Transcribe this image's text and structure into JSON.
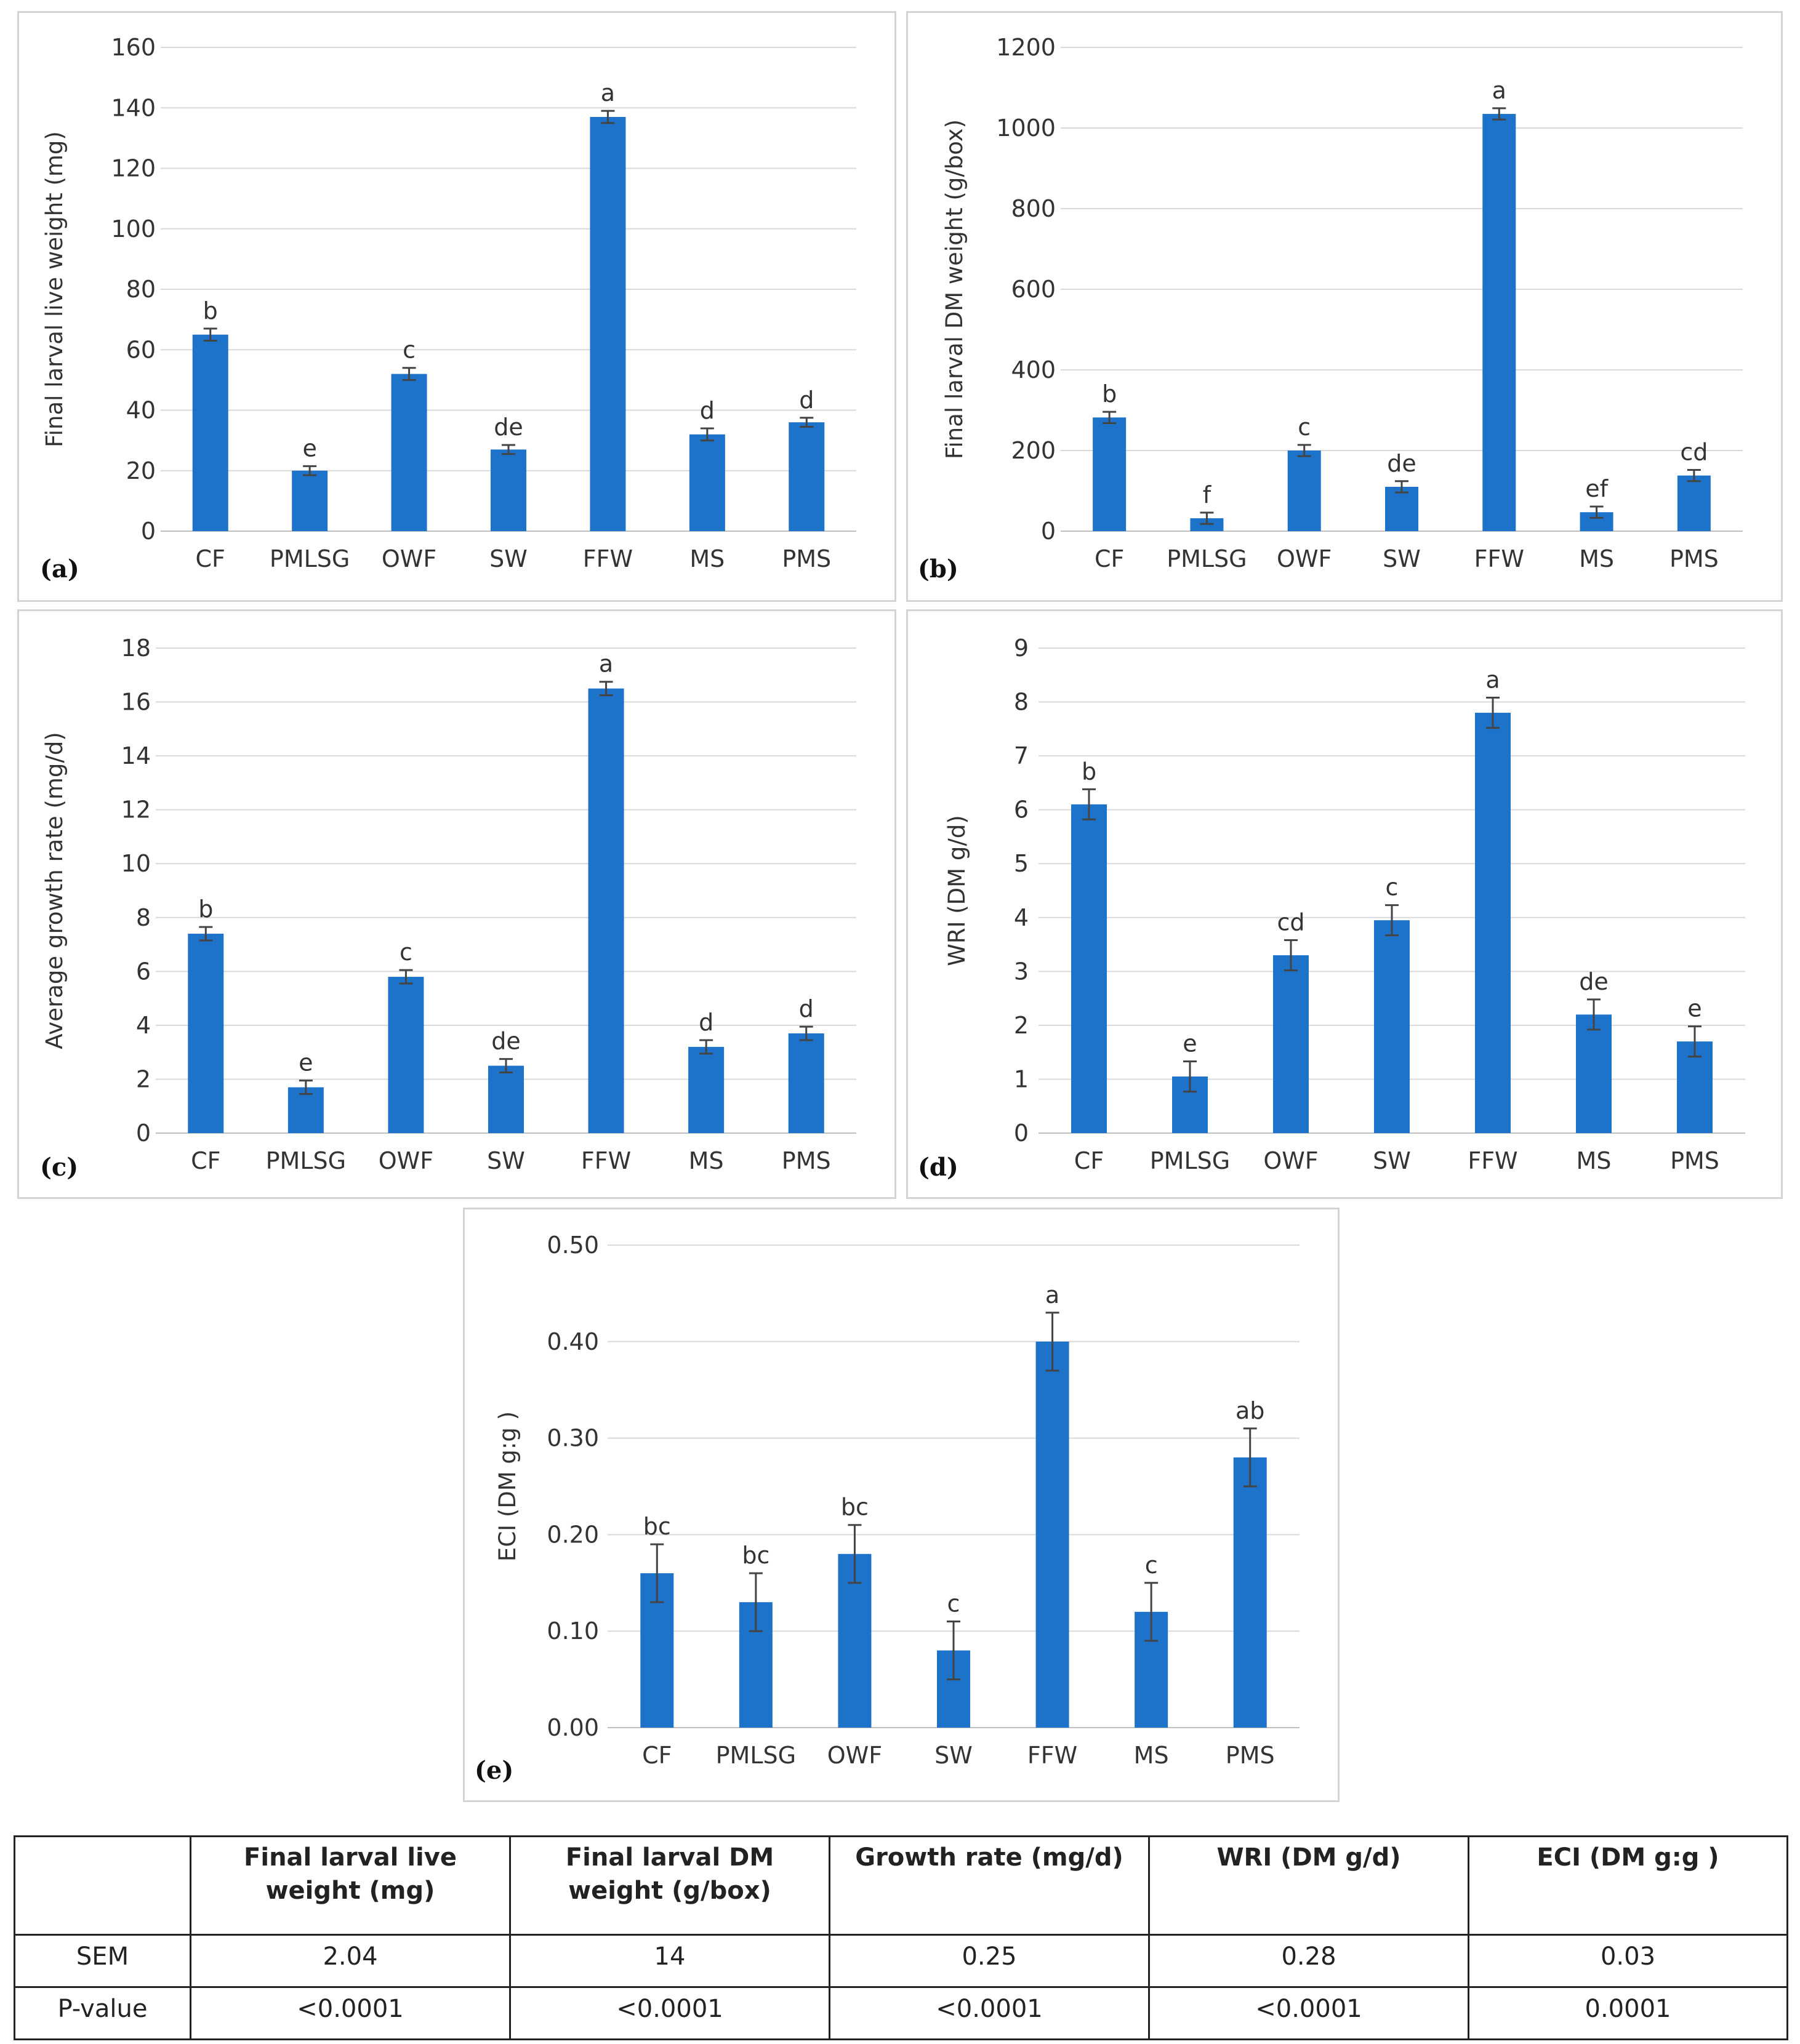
{
  "colors": {
    "bar": "#1c73c9",
    "grid": "#d9d9d9",
    "error": "#444444"
  },
  "chart_data": [
    {
      "id": "a",
      "type": "bar",
      "panel_label": "(a)",
      "title": "",
      "xlabel": "",
      "ylabel": "Final larval live weight (mg)",
      "categories": [
        "CF",
        "PMLSG",
        "OWF",
        "SW",
        "FFW",
        "MS",
        "PMS"
      ],
      "values": [
        65,
        20,
        52,
        27,
        137,
        32,
        36
      ],
      "errors": [
        2,
        1.5,
        2,
        1.5,
        2,
        2,
        1.5
      ],
      "letters": [
        "b",
        "e",
        "c",
        "de",
        "a",
        "d",
        "d"
      ],
      "ylim": [
        0,
        160
      ],
      "yticks": [
        "0",
        "20",
        "40",
        "60",
        "80",
        "100",
        "120",
        "140",
        "160"
      ]
    },
    {
      "id": "b",
      "type": "bar",
      "panel_label": "(b)",
      "title": "",
      "xlabel": "",
      "ylabel": "Final larval DM weight (g/box)",
      "categories": [
        "CF",
        "PMLSG",
        "OWF",
        "SW",
        "FFW",
        "MS",
        "PMS"
      ],
      "values": [
        282,
        32,
        200,
        110,
        1035,
        47,
        138
      ],
      "errors": [
        14,
        14,
        14,
        14,
        14,
        14,
        14
      ],
      "letters": [
        "b",
        "f",
        "c",
        "de",
        "a",
        "ef",
        "cd"
      ],
      "ylim": [
        0,
        1200
      ],
      "yticks": [
        "0",
        "200",
        "400",
        "600",
        "800",
        "1000",
        "1200"
      ]
    },
    {
      "id": "c",
      "type": "bar",
      "panel_label": "(c)",
      "title": "",
      "xlabel": "",
      "ylabel": "Average growth rate (mg/d)",
      "categories": [
        "CF",
        "PMLSG",
        "OWF",
        "SW",
        "FFW",
        "MS",
        "PMS"
      ],
      "values": [
        7.4,
        1.7,
        5.8,
        2.5,
        16.5,
        3.2,
        3.7
      ],
      "errors": [
        0.25,
        0.25,
        0.25,
        0.25,
        0.25,
        0.25,
        0.25
      ],
      "letters": [
        "b",
        "e",
        "c",
        "de",
        "a",
        "d",
        "d"
      ],
      "ylim": [
        0,
        18
      ],
      "yticks": [
        "0",
        "2",
        "4",
        "6",
        "8",
        "10",
        "12",
        "14",
        "16",
        "18"
      ]
    },
    {
      "id": "d",
      "type": "bar",
      "panel_label": "(d)",
      "title": "",
      "xlabel": "",
      "ylabel": "WRI (DM g/d)",
      "categories": [
        "CF",
        "PMLSG",
        "OWF",
        "SW",
        "FFW",
        "MS",
        "PMS"
      ],
      "values": [
        6.1,
        1.05,
        3.3,
        3.95,
        7.8,
        2.2,
        1.7
      ],
      "errors": [
        0.28,
        0.28,
        0.28,
        0.28,
        0.28,
        0.28,
        0.28
      ],
      "letters": [
        "b",
        "e",
        "cd",
        "c",
        "a",
        "de",
        "e"
      ],
      "ylim": [
        0,
        9
      ],
      "yticks": [
        "0",
        "1",
        "2",
        "3",
        "4",
        "5",
        "6",
        "7",
        "8",
        "9"
      ]
    },
    {
      "id": "e",
      "type": "bar",
      "panel_label": "(e)",
      "title": "",
      "xlabel": "",
      "ylabel": "ECI (DM g:g )",
      "categories": [
        "CF",
        "PMLSG",
        "OWF",
        "SW",
        "FFW",
        "MS",
        "PMS"
      ],
      "values": [
        0.16,
        0.13,
        0.18,
        0.08,
        0.4,
        0.12,
        0.28
      ],
      "errors": [
        0.03,
        0.03,
        0.03,
        0.03,
        0.03,
        0.03,
        0.03
      ],
      "letters": [
        "bc",
        "bc",
        "bc",
        "c",
        "a",
        "c",
        "ab"
      ],
      "ylim": [
        0,
        0.5
      ],
      "yticks": [
        "0.00",
        "0.10",
        "0.20",
        "0.30",
        "0.40",
        "0.50"
      ]
    }
  ],
  "table": {
    "headers": [
      "",
      "Final larval live weight (mg)",
      "Final larval DM weight (g/box)",
      "Growth rate (mg/d)",
      "WRI (DM g/d)",
      "ECI (DM g:g )"
    ],
    "rows": [
      {
        "label": "SEM",
        "cells": [
          "2.04",
          "14",
          "0.25",
          "0.28",
          "0.03"
        ]
      },
      {
        "label": "P-value",
        "cells": [
          "<0.0001",
          "<0.0001",
          "<0.0001",
          "<0.0001",
          "0.0001"
        ]
      }
    ]
  }
}
